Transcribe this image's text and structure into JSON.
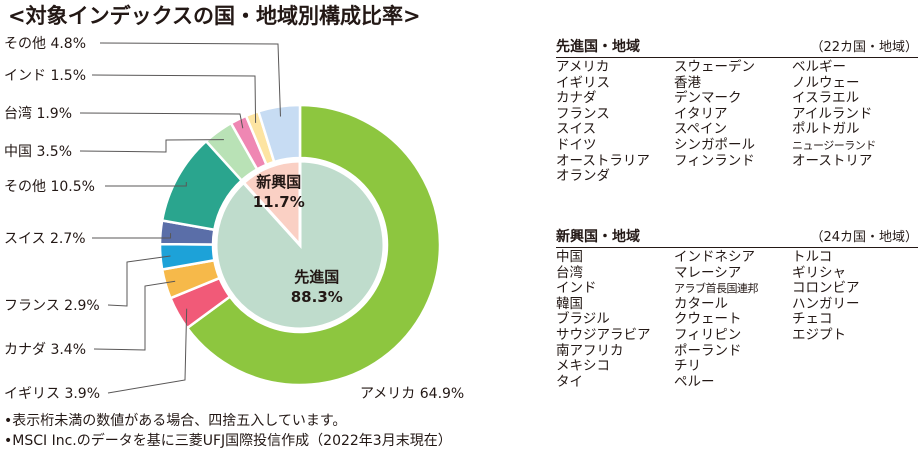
{
  "title": "<対象インデックスの国・地域別構成比率>",
  "chart_data": {
    "type": "pie",
    "outer_ring": [
      {
        "name": "アメリカ",
        "value": 64.9,
        "color": "#8dc63f",
        "label": "アメリカ 64.9%"
      },
      {
        "name": "イギリス",
        "value": 3.9,
        "color": "#f15a78",
        "label": "イギリス 3.9%"
      },
      {
        "name": "カナダ",
        "value": 3.4,
        "color": "#f6b94a",
        "label": "カナダ 3.4%"
      },
      {
        "name": "フランス",
        "value": 2.9,
        "color": "#1da2d8",
        "label": "フランス 2.9%"
      },
      {
        "name": "スイス",
        "value": 2.7,
        "color": "#5a6ea8",
        "label": "スイス 2.7%"
      },
      {
        "name": "その他",
        "value": 10.5,
        "color": "#2aa58e",
        "label": "その他 10.5%"
      },
      {
        "name": "中国",
        "value": 3.5,
        "color": "#b9e2b6",
        "label": "中国 3.5%"
      },
      {
        "name": "台湾",
        "value": 1.9,
        "color": "#ef87b3",
        "label": "台湾 1.9%"
      },
      {
        "name": "インド",
        "value": 1.5,
        "color": "#fde4a2",
        "label": "インド 1.5%"
      },
      {
        "name": "その他",
        "value": 4.8,
        "color": "#c7dcf3",
        "label": "その他 4.8%"
      }
    ],
    "inner_ring": [
      {
        "name": "先進国",
        "value": 88.3,
        "color": "#bfdccc",
        "label": "先進国",
        "pct": "88.3%"
      },
      {
        "name": "新興国",
        "value": 11.7,
        "color": "#fad0c4",
        "label": "新興国",
        "pct": "11.7%"
      }
    ]
  },
  "developed": {
    "heading": "先進国・地域",
    "count": "（22カ国・地域）",
    "columns": [
      [
        "アメリカ",
        "イギリス",
        "カナダ",
        "フランス",
        "スイス",
        "ドイツ",
        "オーストラリア",
        "オランダ"
      ],
      [
        "スウェーデン",
        "香港",
        "デンマーク",
        "イタリア",
        "スペイン",
        "シンガポール",
        "フィンランド"
      ],
      [
        "ベルギー",
        "ノルウェー",
        "イスラエル",
        "アイルランド",
        "ポルトガル",
        "ニュージーランド",
        "オーストリア"
      ]
    ]
  },
  "emerging": {
    "heading": "新興国・地域",
    "count": "（24カ国・地域）",
    "columns": [
      [
        "中国",
        "台湾",
        "インド",
        "韓国",
        "ブラジル",
        "サウジアラビア",
        "南アフリカ",
        "メキシコ",
        "タイ"
      ],
      [
        "インドネシア",
        "マレーシア",
        "アラブ首長国連邦",
        "カタール",
        "クウェート",
        "フィリピン",
        "ポーランド",
        "チリ",
        "ペルー"
      ],
      [
        "トルコ",
        "ギリシャ",
        "コロンビア",
        "ハンガリー",
        "チェコ",
        "エジプト"
      ]
    ]
  },
  "notes": [
    "•表示桁未満の数値がある場合、四捨五入しています。",
    "•MSCI Inc.のデータを基に三菱UFJ国際投信作成（2022年3月末現在）"
  ]
}
